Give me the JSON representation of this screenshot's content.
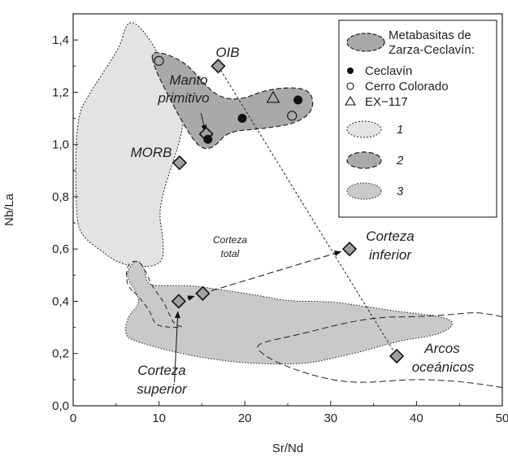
{
  "chart_data": {
    "type": "scatter",
    "xlabel": "Sr/Nd",
    "ylabel": "Nb/La",
    "xlim": [
      0,
      50
    ],
    "ylim": [
      0,
      1.5
    ],
    "xticks": [
      "0",
      "10",
      "20",
      "30",
      "40",
      "50"
    ],
    "yticks": [
      "0,0",
      "0,2",
      "0,4",
      "0,6",
      "0,8",
      "1,0",
      "1,2",
      "1,4"
    ],
    "grid": false,
    "legend_position": "top-right",
    "legend": {
      "title_line1": "Metabasitas de",
      "title_line2": "Zarza-Ceclavín:",
      "ceclavin": "Ceclavín",
      "cerro": "Cerro Colorado",
      "ex": "EX−117",
      "field1": "1",
      "field2": "2",
      "field3": "3"
    },
    "series": [
      {
        "name": "Ceclavín",
        "marker": "filled-circle",
        "points": [
          [
            15.7,
            1.02
          ],
          [
            19.7,
            1.1
          ],
          [
            26.2,
            1.17
          ]
        ]
      },
      {
        "name": "Cerro Colorado",
        "marker": "open-circle",
        "points": [
          [
            10.0,
            1.32
          ],
          [
            25.5,
            1.11
          ]
        ]
      },
      {
        "name": "EX−117",
        "marker": "open-triangle",
        "points": [
          [
            23.3,
            1.18
          ]
        ]
      }
    ],
    "references": [
      {
        "label": "OIB",
        "x": 16.9,
        "y": 1.3
      },
      {
        "label_line1": "Manto",
        "label_line2": "primitivo",
        "x": 15.5,
        "y": 1.04
      },
      {
        "label": "MORB",
        "x": 12.4,
        "y": 0.93
      },
      {
        "label_line1": "Corteza",
        "label_line2": "inferior",
        "x": 32.2,
        "y": 0.6
      },
      {
        "label_line1": "Corteza",
        "label_line2": "total",
        "x": 15.1,
        "y": 0.43
      },
      {
        "label_line1": "Corteza",
        "label_line2": "superior",
        "x": 12.3,
        "y": 0.4
      },
      {
        "label_line1": "Arcos",
        "label_line2": "oceánicos",
        "x": 37.7,
        "y": 0.19
      }
    ],
    "fields": [
      {
        "id": "1",
        "color": "#e3e3e3",
        "polygon": [
          [
            6.0,
            1.44
          ],
          [
            6.5,
            1.47
          ],
          [
            7.5,
            1.46
          ],
          [
            9.0,
            1.4
          ],
          [
            10.5,
            1.31
          ],
          [
            12.0,
            1.21
          ],
          [
            13.0,
            1.12
          ],
          [
            12.5,
            1.02
          ],
          [
            11.5,
            0.92
          ],
          [
            10.5,
            0.82
          ],
          [
            10.0,
            0.73
          ],
          [
            10.5,
            0.64
          ],
          [
            10.5,
            0.54
          ],
          [
            7.5,
            0.53
          ],
          [
            5.0,
            0.55
          ],
          [
            3.0,
            0.6
          ],
          [
            1.0,
            0.65
          ],
          [
            0.3,
            0.72
          ],
          [
            0.3,
            1.1
          ],
          [
            2.0,
            1.2
          ],
          [
            4.0,
            1.3
          ],
          [
            5.5,
            1.38
          ]
        ]
      },
      {
        "id": "2",
        "color": "#a9a9a9",
        "polygon": [
          [
            9.0,
            1.36
          ],
          [
            11.5,
            1.34
          ],
          [
            13.5,
            1.3
          ],
          [
            15.0,
            1.24
          ],
          [
            17.0,
            1.18
          ],
          [
            19.5,
            1.17
          ],
          [
            22.5,
            1.21
          ],
          [
            26.0,
            1.22
          ],
          [
            27.8,
            1.2
          ],
          [
            28.0,
            1.13
          ],
          [
            26.0,
            1.08
          ],
          [
            22.0,
            1.06
          ],
          [
            18.0,
            1.05
          ],
          [
            16.5,
            0.99
          ],
          [
            15.0,
            0.98
          ],
          [
            13.5,
            1.04
          ],
          [
            11.5,
            1.16
          ],
          [
            9.5,
            1.29
          ]
        ]
      },
      {
        "id": "3",
        "color": "#c9c9c9",
        "polygon": [
          [
            6.5,
            0.53
          ],
          [
            7.5,
            0.56
          ],
          [
            8.3,
            0.53
          ],
          [
            8.6,
            0.46
          ],
          [
            11.0,
            0.46
          ],
          [
            14.0,
            0.46
          ],
          [
            18.0,
            0.44
          ],
          [
            22.0,
            0.42
          ],
          [
            25.0,
            0.4
          ],
          [
            30.0,
            0.4
          ],
          [
            34.0,
            0.38
          ],
          [
            38.0,
            0.36
          ],
          [
            43.5,
            0.34
          ],
          [
            44.5,
            0.31
          ],
          [
            42.5,
            0.27
          ],
          [
            38.0,
            0.25
          ],
          [
            34.0,
            0.21
          ],
          [
            30.0,
            0.18
          ],
          [
            27.0,
            0.16
          ],
          [
            22.0,
            0.16
          ],
          [
            18.0,
            0.17
          ],
          [
            14.0,
            0.19
          ],
          [
            10.0,
            0.22
          ],
          [
            7.0,
            0.25
          ],
          [
            6.0,
            0.27
          ],
          [
            6.3,
            0.34
          ],
          [
            7.8,
            0.39
          ],
          [
            7.3,
            0.44
          ],
          [
            6.2,
            0.49
          ]
        ]
      }
    ],
    "arcos_field": [
      [
        50.0,
        0.34
      ],
      [
        47.5,
        0.36
      ],
      [
        44.5,
        0.35
      ],
      [
        40.0,
        0.34
      ],
      [
        36.0,
        0.34
      ],
      [
        32.0,
        0.32
      ],
      [
        26.0,
        0.27
      ],
      [
        21.5,
        0.24
      ],
      [
        21.5,
        0.21
      ],
      [
        24.0,
        0.16
      ],
      [
        28.5,
        0.11
      ],
      [
        32.0,
        0.09
      ],
      [
        35.0,
        0.09
      ],
      [
        38.5,
        0.1
      ],
      [
        42.0,
        0.1
      ],
      [
        46.0,
        0.09
      ],
      [
        50.0,
        0.07
      ]
    ],
    "upper_crust_field": [
      [
        6.2,
        0.46
      ],
      [
        6.2,
        0.54
      ],
      [
        7.5,
        0.56
      ],
      [
        8.4,
        0.52
      ],
      [
        9.0,
        0.47
      ],
      [
        9.8,
        0.43
      ],
      [
        10.5,
        0.4
      ],
      [
        11.2,
        0.35
      ],
      [
        11.8,
        0.31
      ],
      [
        13.0,
        0.3
      ],
      [
        11.0,
        0.3
      ],
      [
        9.5,
        0.31
      ],
      [
        9.0,
        0.36
      ],
      [
        7.6,
        0.42
      ]
    ],
    "arcs_line": [
      [
        16.9,
        1.3
      ],
      [
        37.7,
        0.19
      ]
    ],
    "mixing_arrows": [
      {
        "from": [
          12.3,
          0.4
        ],
        "to": [
          15.1,
          0.43
        ]
      },
      {
        "from": [
          15.1,
          0.43
        ],
        "to": [
          32.2,
          0.6
        ]
      }
    ],
    "pointer_arrows": [
      {
        "from": [
          14.9,
          1.12
        ],
        "to": [
          15.4,
          1.05
        ]
      },
      {
        "from": [
          11.8,
          0.09
        ],
        "to": [
          12.2,
          0.36
        ]
      }
    ]
  }
}
